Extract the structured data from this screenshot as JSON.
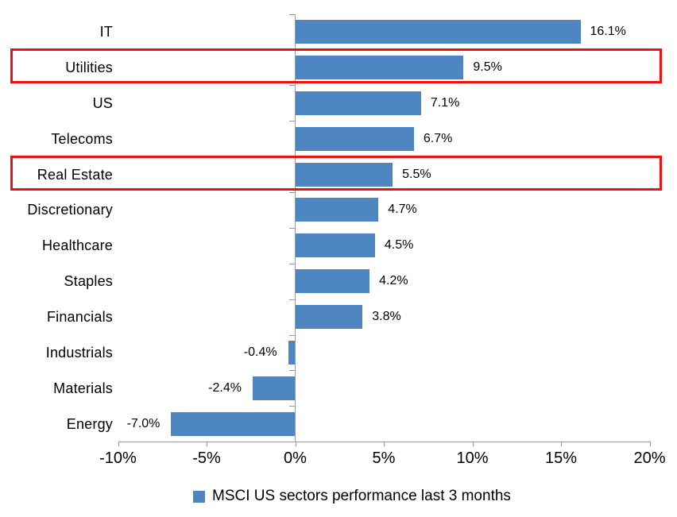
{
  "chart_data": {
    "type": "bar",
    "orientation": "horizontal",
    "title": "",
    "xlabel": "",
    "ylabel": "",
    "categories": [
      "IT",
      "Utilities",
      "US",
      "Telecoms",
      "Real Estate",
      "Discretionary",
      "Healthcare",
      "Staples",
      "Financials",
      "Industrials",
      "Materials",
      "Energy"
    ],
    "values": [
      16.1,
      9.5,
      7.1,
      6.7,
      5.5,
      4.7,
      4.5,
      4.2,
      3.8,
      -0.4,
      -2.4,
      -7.0
    ],
    "value_labels": [
      "16.1%",
      "9.5%",
      "7.1%",
      "6.7%",
      "5.5%",
      "4.7%",
      "4.5%",
      "4.2%",
      "3.8%",
      "-0.4%",
      "-2.4%",
      "-7.0%"
    ],
    "highlighted_categories": [
      "Utilities",
      "Real Estate"
    ],
    "x_axis": {
      "min": -10,
      "max": 20,
      "tick_values": [
        -10,
        -5,
        0,
        5,
        10,
        15,
        20
      ],
      "tick_labels": [
        "-10%",
        "-5%",
        "0%",
        "5%",
        "10%",
        "15%",
        "20%"
      ]
    },
    "grid": false,
    "legend_position": "bottom",
    "legend": {
      "label": "MSCI US sectors performance last 3 months",
      "marker": "square-icon"
    },
    "colors": {
      "bar": "#4D86C0",
      "highlight_border": "#ee1111",
      "axis": "#9b9b9b",
      "text": "#000000",
      "background": "#ffffff"
    }
  }
}
